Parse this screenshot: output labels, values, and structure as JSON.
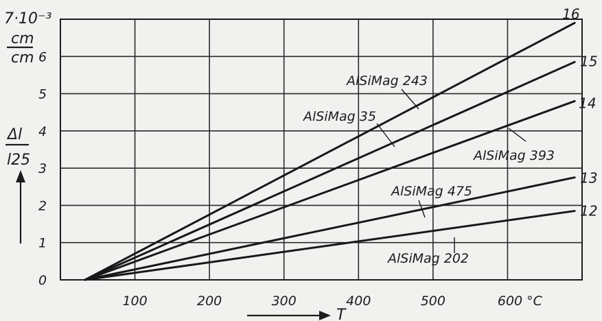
{
  "chart_data": {
    "type": "line",
    "title": "",
    "x_axis": {
      "label": "T",
      "unit": "°C",
      "ticks": [
        "100",
        "200",
        "300",
        "400",
        "500",
        "600 °C"
      ],
      "range": [
        0,
        700
      ],
      "grid": true
    },
    "y_axis": {
      "label_top": "Δl",
      "label_bottom": "l25",
      "unit_top": "cm",
      "unit_bottom": "cm",
      "scale_label": "7·10⁻³",
      "ticks": [
        "0",
        "1",
        "2",
        "3",
        "4",
        "5",
        "6"
      ],
      "range": [
        0,
        7
      ],
      "grid": true
    },
    "series": [
      {
        "name": "AlSiMag 243",
        "line_id": "16",
        "points": [
          {
            "x": 33,
            "y": 0.0
          },
          {
            "x": 690,
            "y": 6.9
          }
        ]
      },
      {
        "name": "AlSiMag 35",
        "line_id": "15",
        "points": [
          {
            "x": 33,
            "y": 0.0
          },
          {
            "x": 690,
            "y": 5.85
          }
        ]
      },
      {
        "name": "AlSiMag 393",
        "line_id": "14",
        "points": [
          {
            "x": 33,
            "y": 0.0
          },
          {
            "x": 690,
            "y": 4.8
          }
        ]
      },
      {
        "name": "AlSiMag 475",
        "line_id": "13",
        "points": [
          {
            "x": 33,
            "y": 0.0
          },
          {
            "x": 690,
            "y": 2.75
          }
        ]
      },
      {
        "name": "AlSiMag 202",
        "line_id": "12",
        "points": [
          {
            "x": 33,
            "y": 0.0
          },
          {
            "x": 690,
            "y": 1.85
          }
        ]
      }
    ]
  }
}
